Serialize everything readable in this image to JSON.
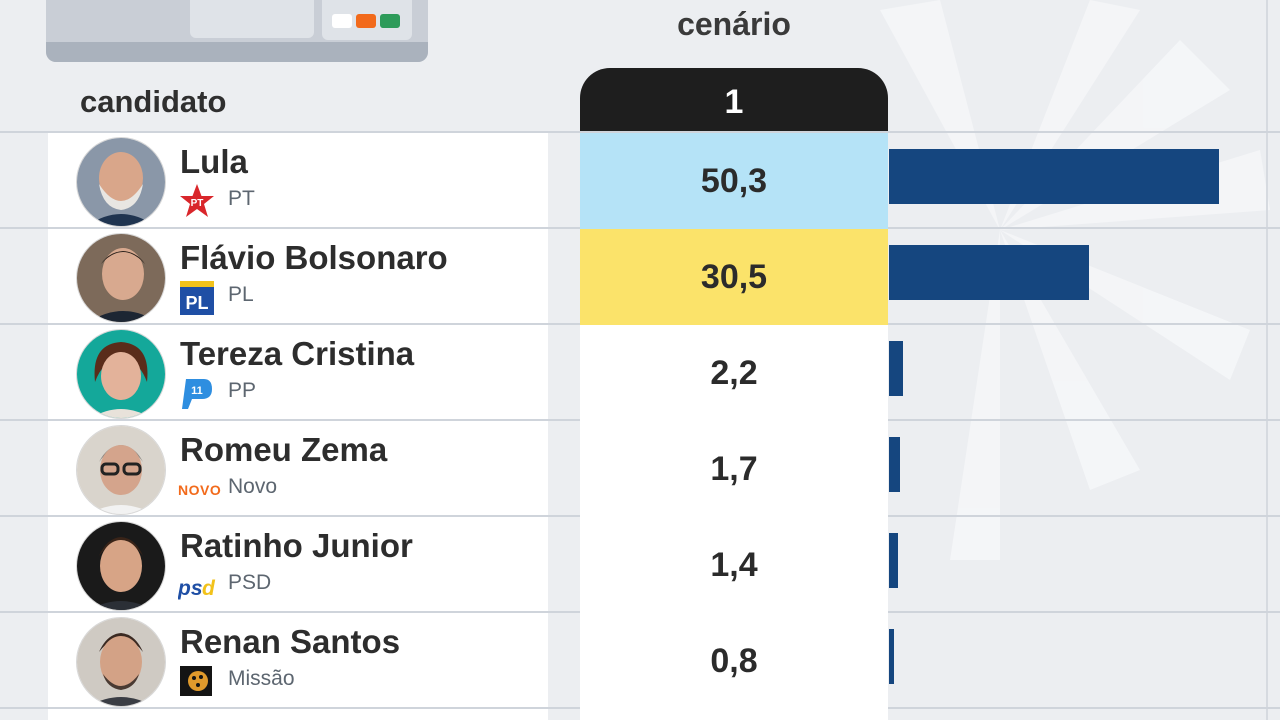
{
  "header": {
    "candidate_label": "candidato",
    "scenario_label": "cenário",
    "scenario_number": "1"
  },
  "colors": {
    "leader_highlight": "#b5e3f7",
    "second_highlight": "#fbe36a",
    "bar": "#15467f"
  },
  "chart_data": {
    "type": "bar",
    "orientation": "horizontal",
    "value_format": "comma_decimal",
    "categories": [
      "Lula",
      "Flávio Bolsonaro",
      "Tereza Cristina",
      "Romeu Zema",
      "Ratinho Junior",
      "Renan Santos"
    ],
    "values": [
      50.3,
      30.5,
      2.2,
      1.7,
      1.4,
      0.8
    ],
    "value_labels": [
      "50,3",
      "30,5",
      "2,2",
      "1,7",
      "1,4",
      "0,8"
    ],
    "xlim": [
      0,
      50.3
    ]
  },
  "candidates": [
    {
      "name": "Lula",
      "party": "PT",
      "party_icon": "pt-star-logo-icon",
      "value": "50,3"
    },
    {
      "name": "Flávio Bolsonaro",
      "party": "PL",
      "party_icon": "pl-logo-icon",
      "value": "30,5"
    },
    {
      "name": "Tereza Cristina",
      "party": "PP",
      "party_icon": "pp-logo-icon",
      "value": "2,2"
    },
    {
      "name": "Romeu Zema",
      "party": "Novo",
      "party_icon": "novo-logo-icon",
      "value": "1,7"
    },
    {
      "name": "Ratinho Junior",
      "party": "PSD",
      "party_icon": "psd-logo-icon",
      "value": "1,4"
    },
    {
      "name": "Renan Santos",
      "party": "Missão",
      "party_icon": "missao-logo-icon",
      "value": "0,8"
    }
  ]
}
